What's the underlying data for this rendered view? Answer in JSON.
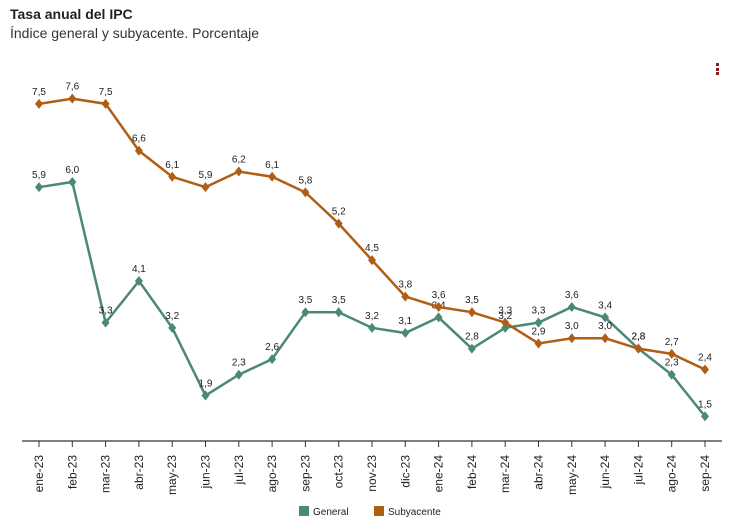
{
  "header": {
    "title": "Tasa anual del IPC",
    "subtitle": "Índice general y subyacente. Porcentaje"
  },
  "menu": {
    "icon": "vertical-ellipsis-icon"
  },
  "chart_data": {
    "type": "line",
    "title": "Tasa anual del IPC",
    "subtitle": "Índice general y subyacente. Porcentaje",
    "categories": [
      "ene-23",
      "feb-23",
      "mar-23",
      "abr-23",
      "may-23",
      "jun-23",
      "jul-23",
      "ago-23",
      "sep-23",
      "oct-23",
      "nov-23",
      "dic-23",
      "ene-24",
      "feb-24",
      "mar-24",
      "abr-24",
      "may-24",
      "jun-24",
      "jul-24",
      "ago-24",
      "sep-24"
    ],
    "series": [
      {
        "name": "General",
        "color": "#4a8878",
        "values": [
          5.9,
          6.0,
          3.3,
          4.1,
          3.2,
          1.9,
          2.3,
          2.6,
          3.5,
          3.5,
          3.2,
          3.1,
          3.4,
          2.8,
          3.2,
          3.3,
          3.6,
          3.4,
          2.8,
          2.3,
          1.5
        ],
        "labels": [
          "5,9",
          "6,0",
          "3,3",
          "4,1",
          "3,2",
          "1,9",
          "2,3",
          "2,6",
          "3,5",
          "3,5",
          "3,2",
          "3,1",
          "3,4",
          "2,8",
          "3,2",
          "3,3",
          "3,6",
          "3,4",
          "2,8",
          "2,3",
          "1,5"
        ]
      },
      {
        "name": "Subyacente",
        "color": "#b05e14",
        "values": [
          7.5,
          7.6,
          7.5,
          6.6,
          6.1,
          5.9,
          6.2,
          6.1,
          5.8,
          5.2,
          4.5,
          3.8,
          3.6,
          3.5,
          3.3,
          2.9,
          3.0,
          3.0,
          2.8,
          2.7,
          2.4
        ],
        "labels": [
          "7,5",
          "7,6",
          "7,5",
          "6,6",
          "6,1",
          "5,9",
          "6,2",
          "6,1",
          "5,8",
          "5,2",
          "4,5",
          "3,8",
          "3,6",
          "3,5",
          "3,3",
          "2,9",
          "3,0",
          "3,0",
          "2,8",
          "2,7",
          "2,4"
        ]
      }
    ],
    "ylim": [
      1.2,
      7.9
    ],
    "grid": false,
    "legend": "bottom"
  }
}
